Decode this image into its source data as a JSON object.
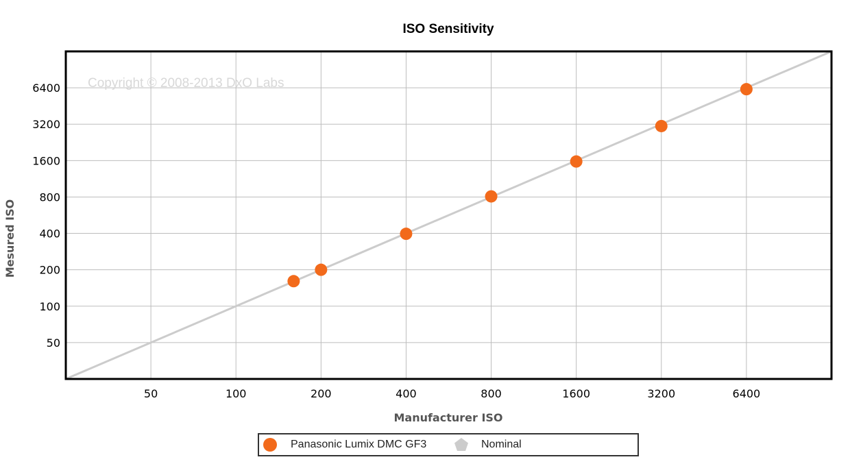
{
  "chart_data": {
    "type": "scatter",
    "title": "ISO Sensitivity",
    "xlabel": "Manufacturer ISO",
    "ylabel": "Mesured ISO",
    "scale": "log2",
    "xlim": [
      25,
      12800
    ],
    "ylim": [
      25,
      12800
    ],
    "x_ticks": [
      "50",
      "100",
      "200",
      "400",
      "800",
      "1600",
      "3200",
      "6400"
    ],
    "y_ticks": [
      "50",
      "100",
      "200",
      "400",
      "800",
      "1600",
      "3200",
      "6400"
    ],
    "watermark": "Copyright © 2008-2013 DxO Labs",
    "grid": true,
    "legend_position": "bottom",
    "series": [
      {
        "name": "Panasonic Lumix DMC GF3",
        "color": "#f26a1b",
        "marker": "circle",
        "points": [
          {
            "x": 160,
            "y": 161
          },
          {
            "x": 200,
            "y": 200
          },
          {
            "x": 400,
            "y": 397
          },
          {
            "x": 800,
            "y": 809
          },
          {
            "x": 1600,
            "y": 1573
          },
          {
            "x": 3200,
            "y": 3088
          },
          {
            "x": 6400,
            "y": 6233
          }
        ]
      },
      {
        "name": "Nominal",
        "color": "#cccccc",
        "marker": "pentagon",
        "type": "line",
        "points": [
          {
            "x": 25,
            "y": 25
          },
          {
            "x": 12800,
            "y": 12800
          }
        ]
      }
    ]
  }
}
